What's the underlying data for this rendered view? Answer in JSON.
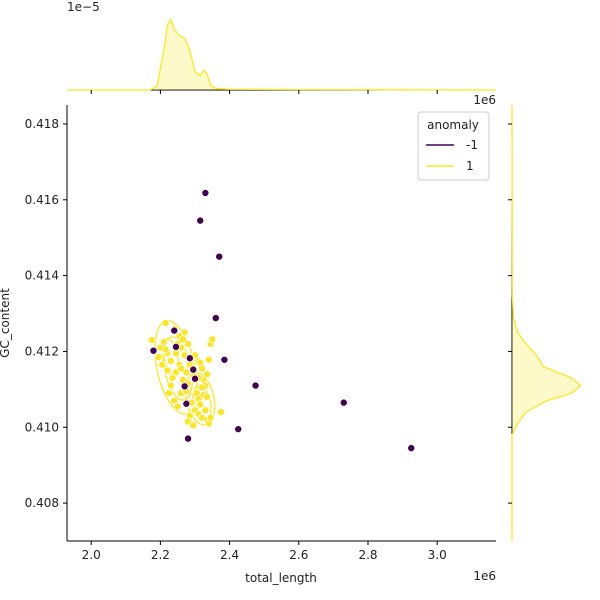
{
  "chart_data": {
    "type": "scatter",
    "xlabel": "total_length",
    "ylabel": "GC_content",
    "x_offset_label": "1e6",
    "y_offset_label": "1e6",
    "top_offset_label": "1e−5",
    "xlim": [
      1.93,
      3.17
    ],
    "ylim": [
      0.407,
      0.4185
    ],
    "x_ticks": [
      2.0,
      2.2,
      2.4,
      2.6,
      2.8,
      3.0
    ],
    "x_tick_labels": [
      "2.0",
      "2.2",
      "2.4",
      "2.6",
      "2.8",
      "3.0"
    ],
    "y_ticks": [
      0.408,
      0.41,
      0.412,
      0.414,
      0.416,
      0.418
    ],
    "y_tick_labels": [
      "0.408",
      "0.410",
      "0.412",
      "0.414",
      "0.416",
      "0.418"
    ],
    "grid": false,
    "legend": {
      "title": "anomaly",
      "placement": "top-right",
      "entries": [
        {
          "label": "-1",
          "color": "#440154"
        },
        {
          "label": "1",
          "color": "#fde725"
        }
      ]
    },
    "series": [
      {
        "name": "-1",
        "color": "#440154",
        "points": [
          [
            2.33,
            0.41618
          ],
          [
            2.315,
            0.41545
          ],
          [
            2.37,
            0.4145
          ],
          [
            2.36,
            0.41288
          ],
          [
            2.385,
            0.41178
          ],
          [
            2.475,
            0.4111
          ],
          [
            2.73,
            0.41065
          ],
          [
            2.925,
            0.40945
          ],
          [
            2.425,
            0.40995
          ],
          [
            2.18,
            0.41202
          ],
          [
            2.24,
            0.41255
          ],
          [
            2.285,
            0.41182
          ],
          [
            2.295,
            0.41152
          ],
          [
            2.27,
            0.41108
          ],
          [
            2.28,
            0.4097
          ],
          [
            2.275,
            0.41062
          ],
          [
            2.3,
            0.41128
          ],
          [
            2.245,
            0.41212
          ]
        ]
      },
      {
        "name": "1",
        "color": "#fde725",
        "points": [
          [
            2.175,
            0.4123
          ],
          [
            2.215,
            0.41275
          ],
          [
            2.24,
            0.4126
          ],
          [
            2.21,
            0.41225
          ],
          [
            2.22,
            0.41195
          ],
          [
            2.23,
            0.41175
          ],
          [
            2.2,
            0.4121
          ],
          [
            2.25,
            0.4122
          ],
          [
            2.26,
            0.4121
          ],
          [
            2.27,
            0.4119
          ],
          [
            2.28,
            0.4122
          ],
          [
            2.29,
            0.4118
          ],
          [
            2.255,
            0.41165
          ],
          [
            2.245,
            0.41145
          ],
          [
            2.235,
            0.4113
          ],
          [
            2.23,
            0.4111
          ],
          [
            2.225,
            0.4109
          ],
          [
            2.24,
            0.4107
          ],
          [
            2.25,
            0.41055
          ],
          [
            2.26,
            0.4109
          ],
          [
            2.265,
            0.41125
          ],
          [
            2.275,
            0.41145
          ],
          [
            2.285,
            0.41165
          ],
          [
            2.295,
            0.41135
          ],
          [
            2.3,
            0.4119
          ],
          [
            2.31,
            0.41175
          ],
          [
            2.315,
            0.4117
          ],
          [
            2.32,
            0.41155
          ],
          [
            2.325,
            0.41125
          ],
          [
            2.33,
            0.4111
          ],
          [
            2.335,
            0.4114
          ],
          [
            2.34,
            0.41178
          ],
          [
            2.345,
            0.4122
          ],
          [
            2.35,
            0.41232
          ],
          [
            2.305,
            0.4109
          ],
          [
            2.31,
            0.41075
          ],
          [
            2.315,
            0.4106
          ],
          [
            2.3,
            0.41045
          ],
          [
            2.29,
            0.41065
          ],
          [
            2.285,
            0.4103
          ],
          [
            2.28,
            0.41015
          ],
          [
            2.295,
            0.41005
          ],
          [
            2.31,
            0.41035
          ],
          [
            2.32,
            0.41025
          ],
          [
            2.33,
            0.41045
          ],
          [
            2.335,
            0.4102
          ],
          [
            2.34,
            0.4101
          ],
          [
            2.345,
            0.41025
          ],
          [
            2.375,
            0.4104
          ],
          [
            2.28,
            0.41115
          ],
          [
            2.26,
            0.41155
          ],
          [
            2.27,
            0.4125
          ],
          [
            2.255,
            0.4124
          ],
          [
            2.265,
            0.41232
          ],
          [
            2.245,
            0.41195
          ],
          [
            2.215,
            0.41205
          ],
          [
            2.195,
            0.41185
          ],
          [
            2.205,
            0.41165
          ],
          [
            2.22,
            0.4115
          ],
          [
            2.275,
            0.41095
          ],
          [
            2.31,
            0.4113
          ],
          [
            2.32,
            0.41105
          ],
          [
            2.325,
            0.41085
          ],
          [
            2.335,
            0.4108
          ]
        ]
      }
    ],
    "contours": [
      {
        "name": "1",
        "color": "#fde725",
        "levels": [
          {
            "cx": 2.245,
            "cy": 0.41158,
            "rx": 0.055,
            "ry": 0.00125
          },
          {
            "cx": 2.25,
            "cy": 0.41155,
            "rx": 0.038,
            "ry": 0.00085
          },
          {
            "cx": 2.315,
            "cy": 0.41075,
            "rx": 0.04,
            "ry": 0.0007
          },
          {
            "cx": 2.32,
            "cy": 0.41065,
            "rx": 0.025,
            "ry": 0.00045
          },
          {
            "cx": 2.23,
            "cy": 0.41185,
            "rx": 0.02,
            "ry": 0.0005
          }
        ]
      }
    ],
    "marginal_x": {
      "name": "1",
      "color": "#fde725",
      "density": [
        [
          1.93,
          0
        ],
        [
          2.17,
          0
        ],
        [
          2.19,
          0.05
        ],
        [
          2.21,
          0.55
        ],
        [
          2.22,
          0.9
        ],
        [
          2.23,
          0.98
        ],
        [
          2.24,
          0.85
        ],
        [
          2.255,
          0.75
        ],
        [
          2.27,
          0.72
        ],
        [
          2.285,
          0.55
        ],
        [
          2.3,
          0.25
        ],
        [
          2.315,
          0.2
        ],
        [
          2.325,
          0.28
        ],
        [
          2.335,
          0.22
        ],
        [
          2.345,
          0.07
        ],
        [
          2.36,
          0.02
        ],
        [
          2.4,
          0.01
        ],
        [
          2.6,
          0.005
        ],
        [
          2.8,
          0.003
        ],
        [
          3.17,
          0
        ]
      ]
    },
    "marginal_y": {
      "name": "1",
      "color": "#fde725",
      "density": [
        [
          0.407,
          0
        ],
        [
          0.4098,
          0
        ],
        [
          0.4101,
          0.08
        ],
        [
          0.4104,
          0.2
        ],
        [
          0.4107,
          0.5
        ],
        [
          0.4109,
          0.85
        ],
        [
          0.4111,
          0.98
        ],
        [
          0.4113,
          0.85
        ],
        [
          0.4116,
          0.45
        ],
        [
          0.4119,
          0.35
        ],
        [
          0.4122,
          0.2
        ],
        [
          0.4125,
          0.08
        ],
        [
          0.4129,
          0.02
        ],
        [
          0.4135,
          0.005
        ],
        [
          0.4185,
          0
        ]
      ]
    }
  }
}
